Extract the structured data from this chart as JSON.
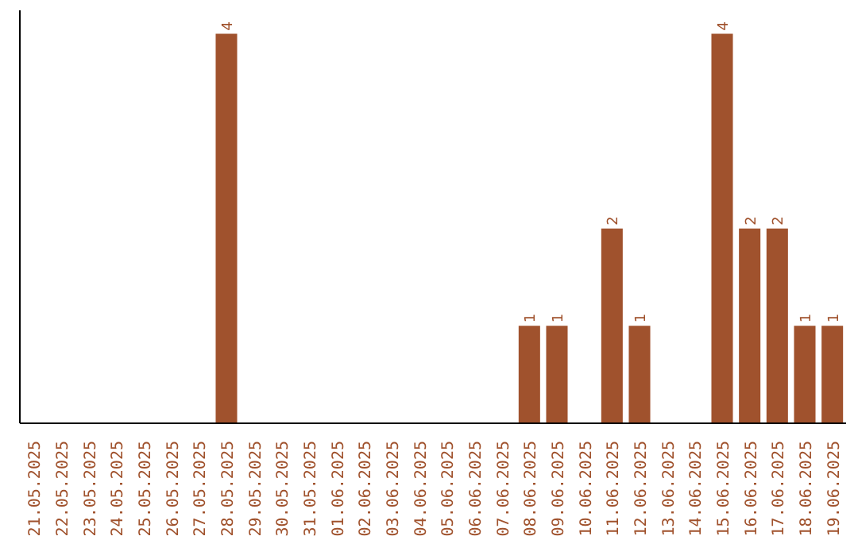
{
  "chart_data": {
    "type": "bar",
    "categories": [
      "21.05.2025",
      "22.05.2025",
      "23.05.2025",
      "24.05.2025",
      "25.05.2025",
      "26.05.2025",
      "27.05.2025",
      "28.05.2025",
      "29.05.2025",
      "30.05.2025",
      "31.05.2025",
      "01.06.2025",
      "02.06.2025",
      "03.06.2025",
      "04.06.2025",
      "05.06.2025",
      "06.06.2025",
      "07.06.2025",
      "08.06.2025",
      "09.06.2025",
      "10.06.2025",
      "11.06.2025",
      "12.06.2025",
      "13.06.2025",
      "14.06.2025",
      "15.06.2025",
      "16.06.2025",
      "17.06.2025",
      "18.06.2025",
      "19.06.2025"
    ],
    "values": [
      0,
      0,
      0,
      0,
      0,
      0,
      0,
      4,
      0,
      0,
      0,
      0,
      0,
      0,
      0,
      0,
      0,
      0,
      1,
      1,
      0,
      2,
      1,
      0,
      0,
      4,
      2,
      2,
      1,
      1
    ],
    "value_labels": [
      null,
      null,
      null,
      null,
      null,
      null,
      null,
      "4",
      null,
      null,
      null,
      null,
      null,
      null,
      null,
      null,
      null,
      null,
      "1",
      "1",
      null,
      "2",
      "1",
      null,
      null,
      "4",
      "2",
      "2",
      "1",
      "1"
    ],
    "color": "#a0522d",
    "grid": false
  }
}
